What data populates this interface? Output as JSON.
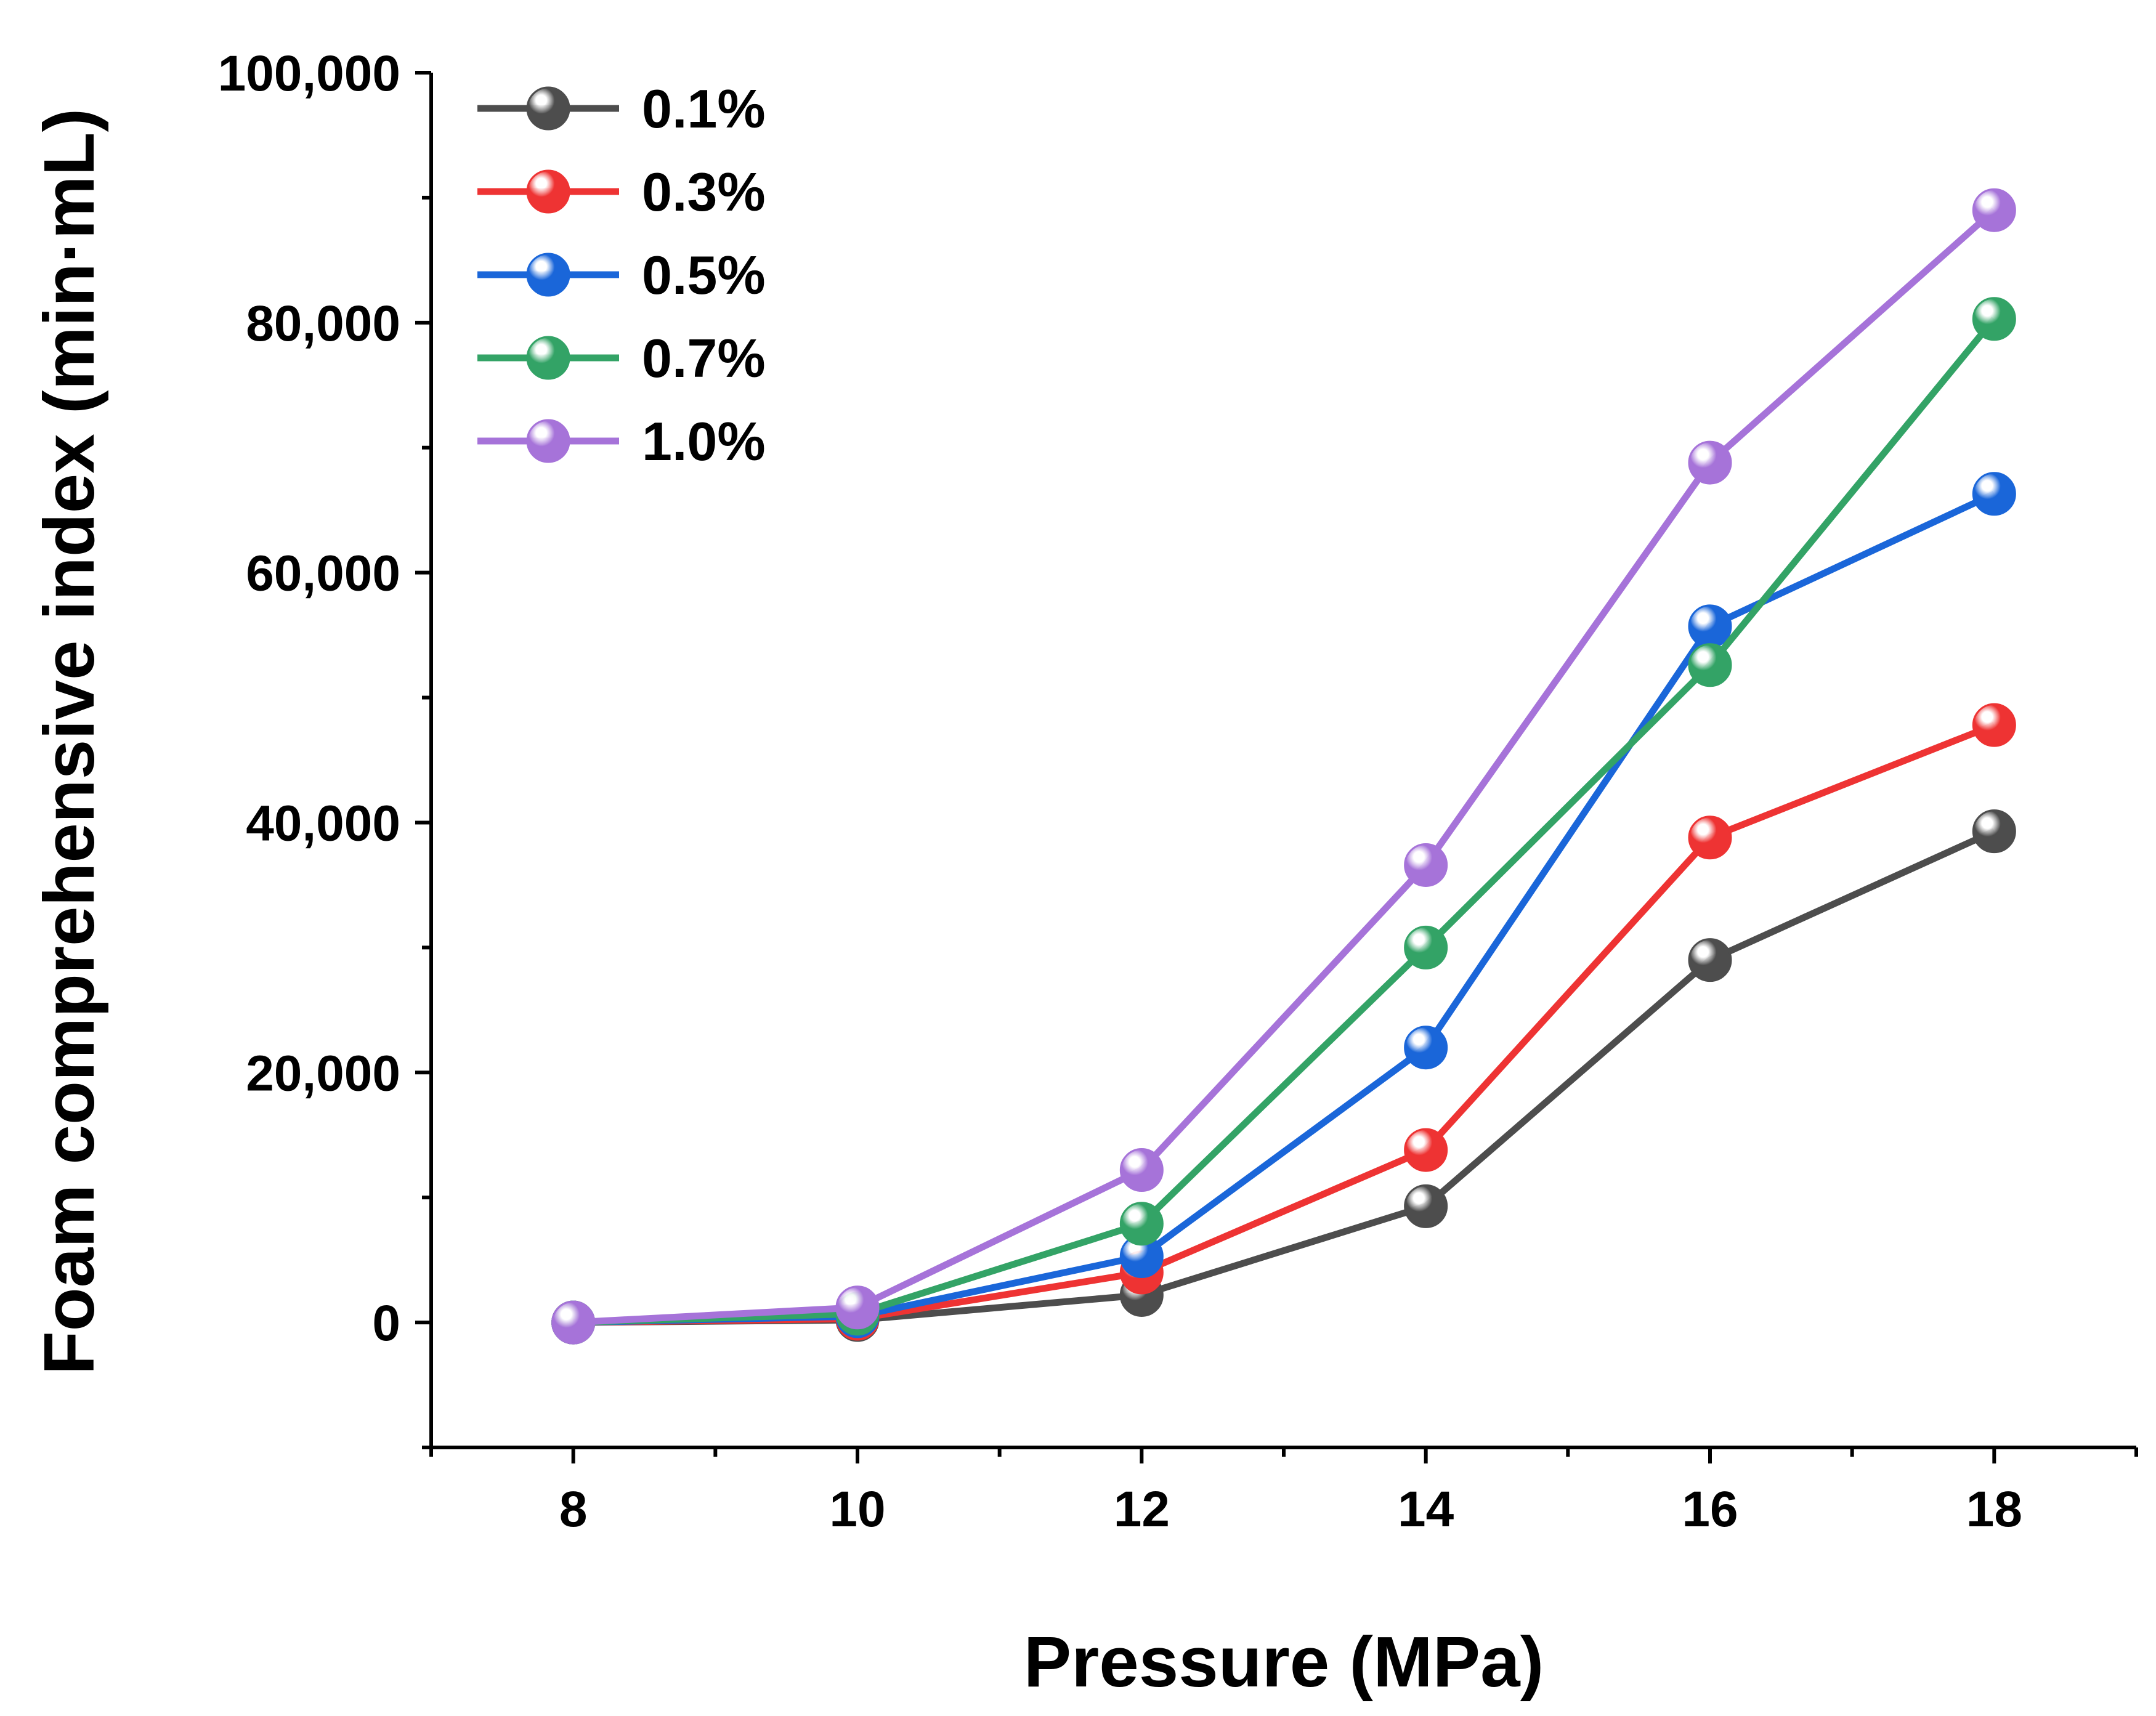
{
  "chart_data": {
    "type": "line",
    "xlabel": "Pressure (MPa)",
    "ylabel": "Foam comprehensive index (min·mL)",
    "x": [
      8,
      10,
      12,
      14,
      16,
      18
    ],
    "xlim": [
      7,
      19
    ],
    "ylim": [
      -10000,
      100000
    ],
    "xticks": [
      8,
      10,
      12,
      14,
      16,
      18
    ],
    "xtick_labels": [
      "8",
      "10",
      "12",
      "14",
      "16",
      "18"
    ],
    "yticks": [
      0,
      20000,
      40000,
      60000,
      80000,
      100000
    ],
    "ytick_labels": [
      "0",
      "20,000",
      "40,000",
      "60,000",
      "80,000",
      "100,000"
    ],
    "grid": false,
    "legend_position": "top-left",
    "series": [
      {
        "name": "0.1%",
        "color": "#4d4d4d",
        "values": [
          0,
          200,
          2200,
          9300,
          29000,
          39300
        ]
      },
      {
        "name": "0.3%",
        "color": "#ee3333",
        "values": [
          0,
          300,
          4000,
          13800,
          38800,
          47800
        ]
      },
      {
        "name": "0.5%",
        "color": "#1a66d9",
        "values": [
          0,
          500,
          5300,
          22000,
          55700,
          66300
        ]
      },
      {
        "name": "0.7%",
        "color": "#33a366",
        "values": [
          0,
          700,
          7900,
          30000,
          52600,
          80300
        ]
      },
      {
        "name": "1.0%",
        "color": "#a673d9",
        "values": [
          0,
          1200,
          12200,
          36600,
          68800,
          89000
        ]
      }
    ]
  }
}
